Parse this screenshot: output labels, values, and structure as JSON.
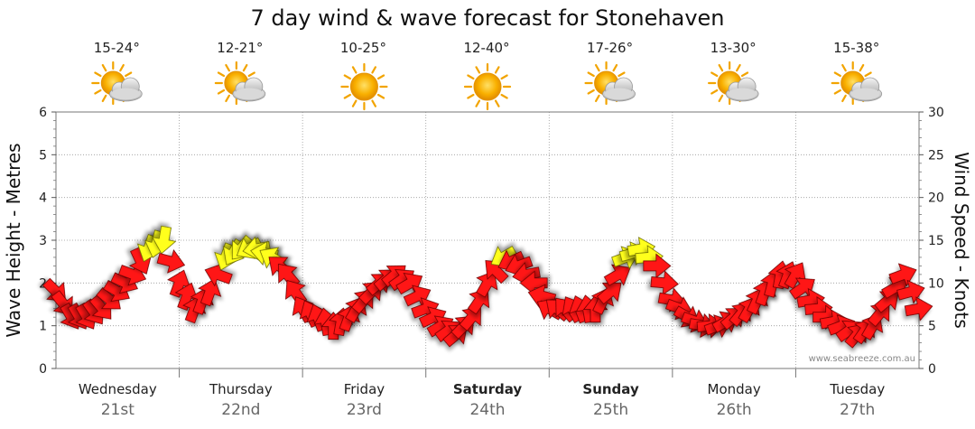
{
  "chart_data": {
    "type": "line",
    "title": "7 day wind & wave forecast for Stonehaven",
    "ylabel_left": "Wave Height - Metres",
    "ylabel_right": "Wind Speed - Knots",
    "ylim_left": [
      0,
      6
    ],
    "ylim_right": [
      0,
      30
    ],
    "left_ticks": [
      "0",
      "1",
      "2",
      "3",
      "4",
      "5",
      "6"
    ],
    "right_ticks": [
      "0",
      "5",
      "10",
      "15",
      "20",
      "25",
      "30"
    ],
    "watermark": "www.seabreeze.com.au",
    "days": [
      {
        "name": "Wednesday",
        "date": "21st",
        "temp": "15-24°",
        "icon": "sun-cloud-icon",
        "bold": false
      },
      {
        "name": "Thursday",
        "date": "22nd",
        "temp": "12-21°",
        "icon": "sun-cloud-icon",
        "bold": false
      },
      {
        "name": "Friday",
        "date": "23rd",
        "temp": "10-25°",
        "icon": "sun-icon",
        "bold": false
      },
      {
        "name": "Saturday",
        "date": "24th",
        "temp": "12-40°",
        "icon": "sun-icon",
        "bold": true
      },
      {
        "name": "Sunday",
        "date": "25th",
        "temp": "17-26°",
        "icon": "sun-cloud-icon",
        "bold": true
      },
      {
        "name": "Monday",
        "date": "26th",
        "temp": "13-30°",
        "icon": "sun-cloud-icon",
        "bold": false
      },
      {
        "name": "Tuesday",
        "date": "27th",
        "temp": "15-38°",
        "icon": "sun-cloud-icon",
        "bold": false
      }
    ],
    "x_unit": "hours from start of Wednesday",
    "wind_series": {
      "name": "Wind speed (knots) with direction",
      "x": [
        0,
        3,
        6,
        9,
        12,
        15,
        18,
        21,
        24,
        27,
        30,
        33,
        36,
        39,
        42,
        45,
        48,
        51,
        54,
        57,
        60,
        63,
        66,
        69,
        72,
        75,
        78,
        81,
        84,
        87,
        90,
        93,
        96,
        99,
        102,
        105,
        108,
        111,
        114,
        117,
        120,
        123,
        126,
        129,
        132,
        135,
        138,
        141,
        144,
        147,
        150,
        153,
        156,
        159,
        162,
        165,
        168
      ],
      "speed_knots": [
        9,
        6,
        6,
        7,
        9,
        11,
        14,
        15,
        10,
        7,
        9,
        13,
        14,
        14,
        13,
        11,
        7,
        6,
        5,
        6,
        8,
        10,
        11,
        10,
        7,
        5,
        4,
        6,
        10,
        13,
        12,
        10,
        7,
        7,
        7,
        7,
        9,
        13,
        14,
        12,
        8,
        6,
        5,
        5,
        6,
        7,
        9,
        11,
        11,
        8,
        6,
        5,
        4,
        5,
        8,
        11,
        7
      ],
      "direction_deg": [
        315,
        330,
        330,
        320,
        300,
        290,
        20,
        10,
        200,
        200,
        200,
        20,
        40,
        80,
        120,
        140,
        150,
        160,
        180,
        200,
        220,
        230,
        230,
        240,
        250,
        240,
        230,
        220,
        210,
        60,
        70,
        90,
        120,
        140,
        160,
        180,
        230,
        250,
        260,
        270,
        280,
        300,
        280,
        250,
        230,
        210,
        200,
        190,
        210,
        260,
        270,
        250,
        220,
        210,
        230,
        250,
        260
      ]
    }
  }
}
